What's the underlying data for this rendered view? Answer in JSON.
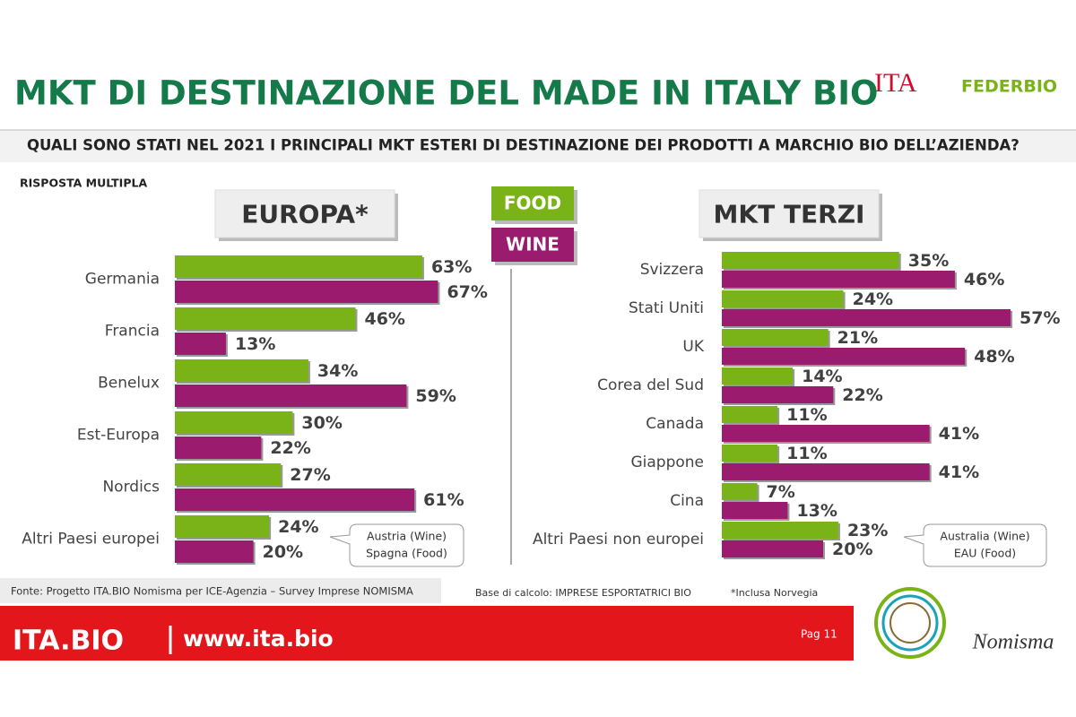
{
  "header": {
    "title": "MKT DI DESTINAZIONE DEL MADE IN ITALY BIO",
    "question": "QUALI SONO STATI NEL 2021 I PRINCIPALI MKT ESTERI DI DESTINAZIONE DEI PRODOTTI A MARCHIO BIO DELL’AZIENDA?",
    "note": "RISPOSTA MULTIPLA",
    "logos": [
      "ITA",
      "FEDERBIO"
    ]
  },
  "chart_data": [
    {
      "type": "bar",
      "orientation": "horizontal",
      "title": "EUROPA*",
      "categories": [
        "Germania",
        "Francia",
        "Benelux",
        "Est-Europa",
        "Nordics",
        "Altri Paesi europei"
      ],
      "series": [
        {
          "name": "FOOD",
          "color": "#7ab317",
          "values": [
            63,
            46,
            34,
            30,
            27,
            24
          ],
          "value_labels": [
            "63%",
            "46%",
            "34%",
            "30%",
            "27%",
            "24%"
          ]
        },
        {
          "name": "WINE",
          "color": "#9b1b6e",
          "values": [
            67,
            13,
            59,
            22,
            61,
            20
          ],
          "value_labels": [
            "67%",
            "13%",
            "59%",
            "22%",
            "61%",
            "20%"
          ]
        }
      ],
      "annotation": [
        "Austria (Wine)",
        "Spagna (Food)"
      ]
    },
    {
      "type": "bar",
      "orientation": "horizontal",
      "title": "MKT TERZI",
      "categories": [
        "Svizzera",
        "Stati Uniti",
        "UK",
        "Corea del Sud",
        "Canada",
        "Giappone",
        "Cina",
        "Altri Paesi non europei"
      ],
      "series": [
        {
          "color": "#7ab317",
          "values": [
            35,
            24,
            21,
            14,
            11,
            11,
            7,
            23
          ],
          "value_labels": [
            "35%",
            "24%",
            "21%",
            "14%",
            "11%",
            "11%",
            "7%",
            "23%"
          ]
        },
        {
          "color": "#9b1b6e",
          "values": [
            46,
            57,
            48,
            22,
            41,
            41,
            13,
            20
          ],
          "value_labels": [
            "46%",
            "57%",
            "48%",
            "22%",
            "41%",
            "41%",
            "13%",
            "20%"
          ]
        }
      ],
      "annotation": [
        "Australia (Wine)",
        "EAU  (Food)"
      ]
    }
  ],
  "footer": {
    "source": "Fonte: Progetto ITA.BIO Nomisma per ICE-Agenzia – Survey Imprese NOMISMA",
    "base": "Base di calcolo: IMPRESE ESPORTATRICI BIO",
    "footnote": "*Inclusa Norvegia",
    "brand": "ITA.BIO",
    "url": "www.ita.bio",
    "page": "Pag 11",
    "partner": "Nomisma"
  }
}
